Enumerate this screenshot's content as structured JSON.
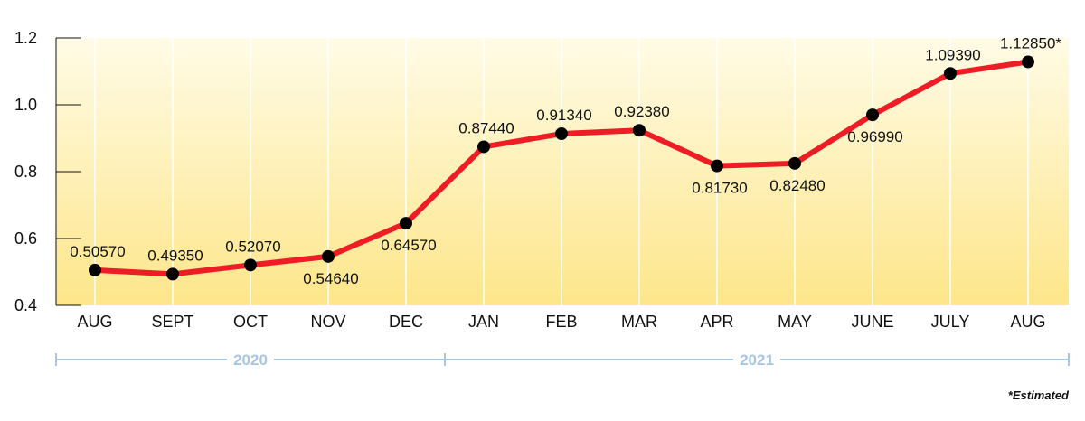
{
  "chart_data": {
    "type": "line",
    "categories": [
      "AUG",
      "SEPT",
      "OCT",
      "NOV",
      "DEC",
      "JAN",
      "FEB",
      "MAR",
      "APR",
      "MAY",
      "JUNE",
      "JULY",
      "AUG"
    ],
    "values": [
      0.5057,
      0.4935,
      0.5207,
      0.5464,
      0.6457,
      0.8744,
      0.9134,
      0.9238,
      0.8173,
      0.8248,
      0.9699,
      1.0939,
      1.1285
    ],
    "value_labels": [
      "0.50570",
      "0.49350",
      "0.52070",
      "0.54640",
      "0.64570",
      "0.87440",
      "0.91340",
      "0.92380",
      "0.81730",
      "0.82480",
      "0.96990",
      "1.09390",
      "1.12850*"
    ],
    "label_positions": [
      "above",
      "above",
      "above",
      "below",
      "below",
      "above",
      "above",
      "above",
      "below",
      "below",
      "below",
      "above",
      "above"
    ],
    "ylim": [
      0.4,
      1.2
    ],
    "yticks": [
      0.4,
      0.6,
      0.8,
      1.0,
      1.2
    ],
    "ytick_labels": [
      "0.4",
      "0.6",
      "0.8",
      "1.0",
      "1.2"
    ],
    "grid": "vertical",
    "line_color": "#ee1c24",
    "marker_color": "#000000",
    "background_gradient": [
      "#fffbe6",
      "#fde68a"
    ],
    "year_groups": [
      {
        "label": "2020",
        "start_index": 0,
        "end_index": 4
      },
      {
        "label": "2021",
        "start_index": 5,
        "end_index": 12
      }
    ],
    "year_bar_color": "#a9c6e0",
    "footnote": "*Estimated"
  }
}
